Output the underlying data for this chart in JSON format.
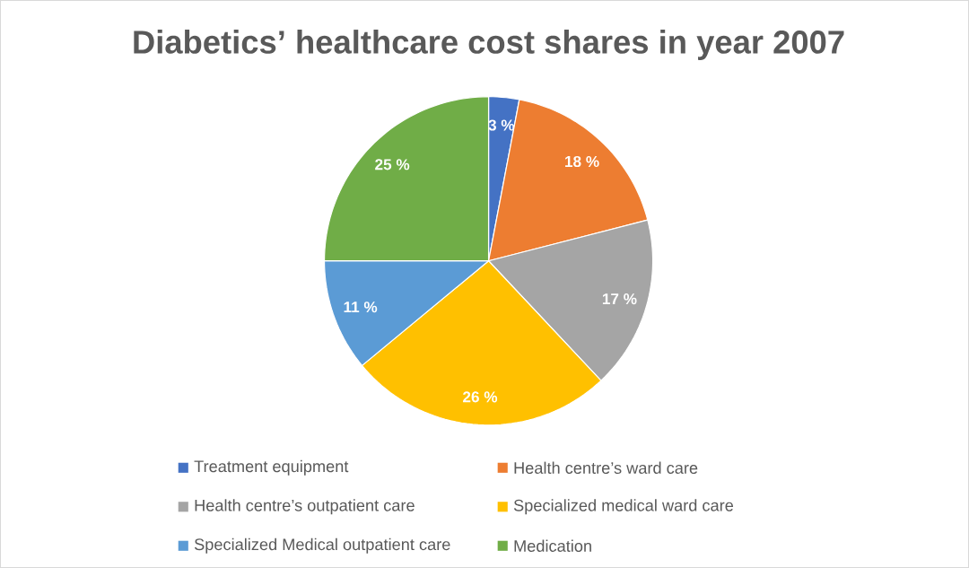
{
  "chart_data": {
    "type": "pie",
    "title": "Diabetics’ healthcare cost shares in year 2007",
    "categories": [
      "Treatment equipment",
      "Health centre’s ward care",
      "Health centre’s outpatient care",
      "Specialized medical ward care",
      "Specialized Medical outpatient care",
      "Medication"
    ],
    "values": [
      3,
      18,
      17,
      26,
      11,
      25
    ],
    "value_labels": [
      "3 %",
      "18 %",
      "17 %",
      "26 %",
      "11 %",
      "25 %"
    ],
    "colors": [
      "#4472c4",
      "#ed7d31",
      "#a5a5a5",
      "#ffc000",
      "#5b9bd5",
      "#70ad47"
    ],
    "legend": "bottom"
  }
}
